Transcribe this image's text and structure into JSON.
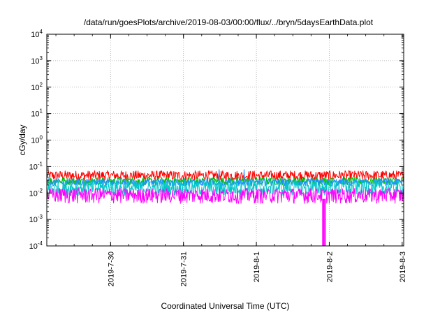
{
  "chart_data": {
    "type": "line",
    "title": "/data/run/goesPlots/archive/2019-08-03/00:00/flux/../bryn/5daysEarthData.plot",
    "xlabel": "Coordinated Universal Time (UTC)",
    "ylabel": "cGy/day",
    "yscale": "log",
    "ylim": [
      0.0001,
      10000
    ],
    "xlim": [
      "2019-07-29T03:00",
      "2019-08-03T00:30"
    ],
    "grid": true,
    "legend": "none",
    "y_ticks": [
      {
        "value": 0.0001,
        "base": "10",
        "exp": "-4"
      },
      {
        "value": 0.001,
        "base": "10",
        "exp": "-3"
      },
      {
        "value": 0.01,
        "base": "10",
        "exp": "-2"
      },
      {
        "value": 0.1,
        "base": "10",
        "exp": "-1"
      },
      {
        "value": 1,
        "base": "10",
        "exp": "0"
      },
      {
        "value": 10,
        "base": "10",
        "exp": "1"
      },
      {
        "value": 100,
        "base": "10",
        "exp": "2"
      },
      {
        "value": 1000,
        "base": "10",
        "exp": "3"
      },
      {
        "value": 10000,
        "base": "10",
        "exp": "4"
      }
    ],
    "x_ticks": [
      {
        "value": "2019-07-30T00:00",
        "label": "2019-7-30"
      },
      {
        "value": "2019-07-31T00:00",
        "label": "2019-7-31"
      },
      {
        "value": "2019-08-01T00:00",
        "label": "2019-8-1"
      },
      {
        "value": "2019-08-02T00:00",
        "label": "2019-8-2"
      },
      {
        "value": "2019-08-03T00:00",
        "label": "2019-8-3"
      }
    ],
    "series": [
      {
        "color": "#ff0000",
        "band_low": 0.03,
        "band_high": 0.07
      },
      {
        "color": "#00c000",
        "band_low": 0.02,
        "band_high": 0.04
      },
      {
        "color": "#1e90ff",
        "band_low": 0.018,
        "band_high": 0.035
      },
      {
        "color": "#00c8c8",
        "band_low": 0.008,
        "band_high": 0.03
      },
      {
        "color": "#ff00ff",
        "band_low": 0.004,
        "band_high": 0.02
      }
    ],
    "dropout": {
      "start": "2019-08-01T21:50",
      "end": "2019-08-01T22:40",
      "value_min": 0.0001,
      "color": "#ff00ff"
    }
  },
  "style": {
    "grid_color": "#aaaaaa",
    "axis_color": "#000000",
    "background": "#ffffff"
  }
}
